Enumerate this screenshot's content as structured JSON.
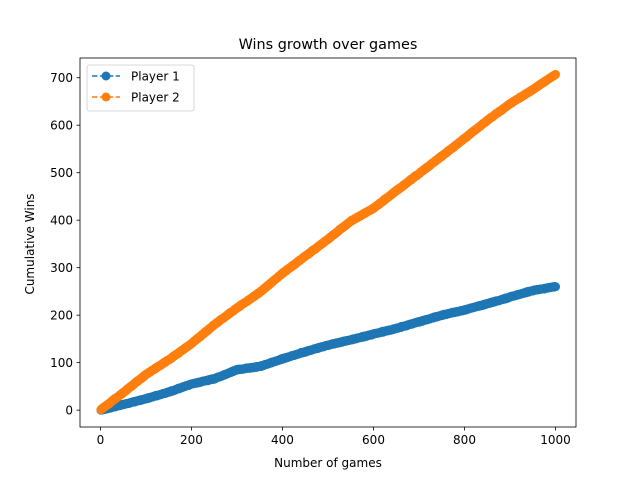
{
  "chart_data": {
    "type": "line",
    "title": "Wins growth over games",
    "xlabel": "Number of games",
    "ylabel": "Cumulative Wins",
    "xlim": [
      -45,
      1045
    ],
    "ylim": [
      -35.5,
      741.5
    ],
    "xticks": [
      0,
      200,
      400,
      600,
      800,
      1000
    ],
    "yticks": [
      0,
      100,
      200,
      300,
      400,
      500,
      600,
      700
    ],
    "grid": false,
    "legend_position": "top-left",
    "x": {
      "start": 1,
      "end": 1000,
      "step": 1
    },
    "series": [
      {
        "name": "Player 1",
        "color": "#1f77b4",
        "linestyle": "dashed",
        "marker": "circle",
        "anchors": [
          [
            1,
            0
          ],
          [
            50,
            12
          ],
          [
            100,
            24
          ],
          [
            150,
            38
          ],
          [
            200,
            55
          ],
          [
            250,
            66
          ],
          [
            300,
            85
          ],
          [
            350,
            92
          ],
          [
            400,
            108
          ],
          [
            450,
            123
          ],
          [
            500,
            137
          ],
          [
            550,
            148
          ],
          [
            600,
            160
          ],
          [
            650,
            172
          ],
          [
            700,
            186
          ],
          [
            750,
            200
          ],
          [
            800,
            211
          ],
          [
            850,
            224
          ],
          [
            900,
            238
          ],
          [
            950,
            252
          ],
          [
            1000,
            260
          ]
        ]
      },
      {
        "name": "Player 2",
        "color": "#ff7f0e",
        "linestyle": "dashed",
        "marker": "circle",
        "anchors": [
          [
            1,
            1
          ],
          [
            50,
            37
          ],
          [
            100,
            75
          ],
          [
            150,
            106
          ],
          [
            200,
            140
          ],
          [
            250,
            180
          ],
          [
            300,
            215
          ],
          [
            350,
            248
          ],
          [
            400,
            288
          ],
          [
            450,
            324
          ],
          [
            500,
            360
          ],
          [
            550,
            398
          ],
          [
            600,
            425
          ],
          [
            650,
            462
          ],
          [
            700,
            498
          ],
          [
            750,
            535
          ],
          [
            800,
            572
          ],
          [
            850,
            610
          ],
          [
            900,
            645
          ],
          [
            950,
            675
          ],
          [
            1000,
            707
          ]
        ]
      }
    ]
  }
}
